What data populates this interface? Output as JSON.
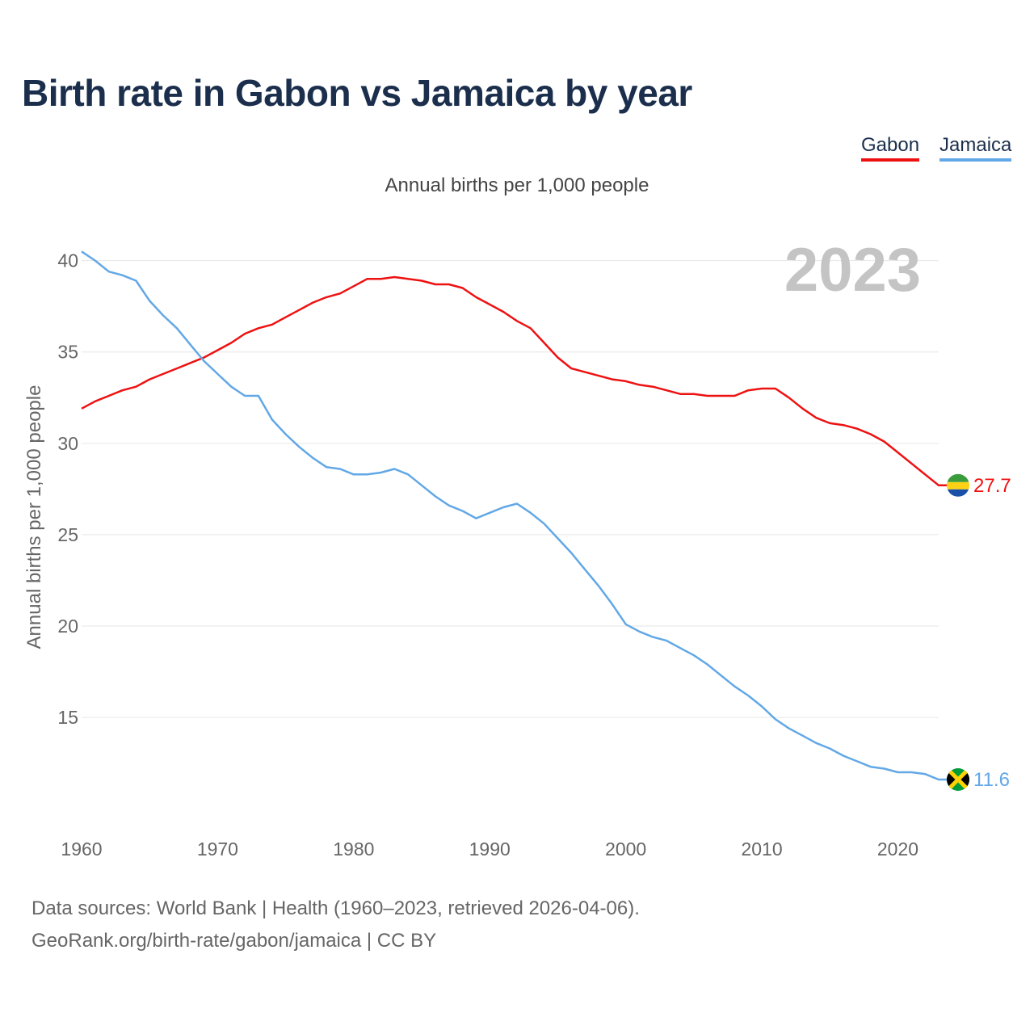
{
  "title": "Birth rate in Gabon vs Jamaica by year",
  "subtitle": "Annual births per 1,000 people",
  "legend": [
    {
      "name": "Gabon",
      "color": "#ee1111"
    },
    {
      "name": "Jamaica",
      "color": "#62a8e6"
    }
  ],
  "footer": {
    "line1": "Data sources: World Bank | Health (1960–2023, retrieved 2026-04-06).",
    "line2": "GeoRank.org/birth-rate/gabon/jamaica | CC BY"
  },
  "chart_data": {
    "type": "line",
    "title": "Birth rate in Gabon vs Jamaica by year",
    "ylabel": "Annual births per 1,000 people",
    "xlabel": "",
    "current_year": "2023",
    "xlim": [
      1960,
      2023
    ],
    "ylim": [
      9.7,
      41
    ],
    "x_ticks": [
      1960,
      1970,
      1980,
      1990,
      2000,
      2010,
      2020
    ],
    "y_ticks": [
      15,
      20,
      25,
      30,
      35,
      40
    ],
    "grid": true,
    "legend_position": "top-right",
    "x": [
      1960,
      1961,
      1962,
      1963,
      1964,
      1965,
      1966,
      1967,
      1968,
      1969,
      1970,
      1971,
      1972,
      1973,
      1974,
      1975,
      1976,
      1977,
      1978,
      1979,
      1980,
      1981,
      1982,
      1983,
      1984,
      1985,
      1986,
      1987,
      1988,
      1989,
      1990,
      1991,
      1992,
      1993,
      1994,
      1995,
      1996,
      1997,
      1998,
      1999,
      2000,
      2001,
      2002,
      2003,
      2004,
      2005,
      2006,
      2007,
      2008,
      2009,
      2010,
      2011,
      2012,
      2013,
      2014,
      2015,
      2016,
      2017,
      2018,
      2019,
      2020,
      2021,
      2022,
      2023
    ],
    "series": [
      {
        "name": "Gabon",
        "color": "#ee1111",
        "end_label": "27.7",
        "values": [
          31.9,
          32.3,
          32.6,
          32.9,
          33.1,
          33.5,
          33.8,
          34.1,
          34.4,
          34.7,
          35.1,
          35.5,
          36.0,
          36.3,
          36.5,
          36.9,
          37.3,
          37.7,
          38.0,
          38.2,
          38.6,
          39.0,
          39.0,
          39.1,
          39.0,
          38.9,
          38.7,
          38.7,
          38.5,
          38.0,
          37.6,
          37.2,
          36.7,
          36.3,
          35.5,
          34.7,
          34.1,
          33.9,
          33.7,
          33.5,
          33.4,
          33.2,
          33.1,
          32.9,
          32.7,
          32.7,
          32.6,
          32.6,
          32.6,
          32.9,
          33.0,
          33.0,
          32.5,
          31.9,
          31.4,
          31.1,
          31.0,
          30.8,
          30.5,
          30.1,
          29.5,
          28.9,
          28.3,
          27.7
        ]
      },
      {
        "name": "Jamaica",
        "color": "#62a8e6",
        "end_label": "11.6",
        "values": [
          40.5,
          40.0,
          39.4,
          39.2,
          38.9,
          37.8,
          37.0,
          36.3,
          35.4,
          34.5,
          33.8,
          33.1,
          32.6,
          32.6,
          31.3,
          30.5,
          29.8,
          29.2,
          28.7,
          28.6,
          28.3,
          28.3,
          28.4,
          28.6,
          28.3,
          27.7,
          27.1,
          26.6,
          26.3,
          25.9,
          26.2,
          26.5,
          26.7,
          26.2,
          25.6,
          24.8,
          24.0,
          23.1,
          22.2,
          21.2,
          20.1,
          19.7,
          19.4,
          19.2,
          18.8,
          18.4,
          17.9,
          17.3,
          16.7,
          16.2,
          15.6,
          14.9,
          14.4,
          14.0,
          13.6,
          13.3,
          12.9,
          12.6,
          12.3,
          12.2,
          12.0,
          12.0,
          11.9,
          11.6
        ]
      }
    ]
  }
}
